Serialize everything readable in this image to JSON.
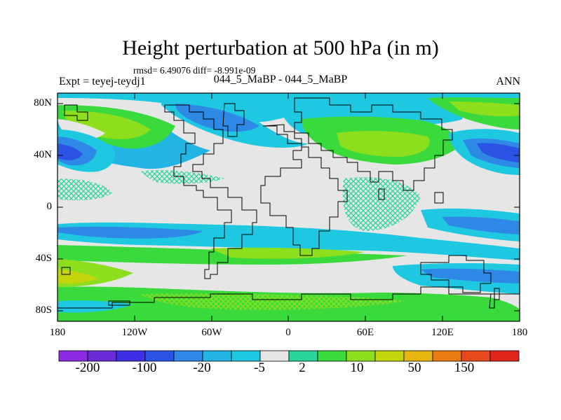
{
  "title": "Height perturbation at 500 hPa (in m)",
  "stats": "rmsd= 6.49076 diff= -8.991e-09",
  "expt": "Expt = teyej-teydj1",
  "subtitle": "044_5_MaBP - 044_5_MaBP",
  "season": "ANN",
  "lat_labels": [
    "80N",
    "40N",
    "0",
    "40S",
    "80S"
  ],
  "lon_labels": [
    "180",
    "120W",
    "60W",
    "0",
    "60E",
    "120E",
    "180"
  ],
  "colorbar": {
    "colors": [
      "#8a2be2",
      "#6a2ad8",
      "#3e2ee6",
      "#2a53e6",
      "#2e88e6",
      "#22b5e4",
      "#1ec8e0",
      "#e6e6e6",
      "#27d59c",
      "#3ad93c",
      "#8ddf1e",
      "#c4d50b",
      "#e6b50e",
      "#ea7a12",
      "#e8481c",
      "#e0251c"
    ],
    "labels": [
      "-200",
      "-100",
      "-20",
      "-5",
      "2",
      "10",
      "50",
      "150"
    ]
  },
  "palette": {
    "lightblue": "#1ec8e0",
    "cyan": "#22b5e4",
    "blue": "#2e88e6",
    "darkblue": "#2a53e6",
    "gray": "#e6e6e6",
    "teal": "#27d59c",
    "green": "#3ad93c",
    "yellowgreen": "#8ddf1e"
  }
}
